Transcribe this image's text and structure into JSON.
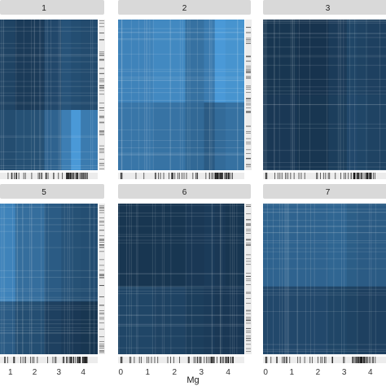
{
  "chart_data": {
    "type": "heatmap",
    "title": "",
    "xlabel": "Mg",
    "ylabel": "",
    "x_ticks": [
      0,
      1,
      2,
      3,
      4
    ],
    "xlim": [
      -0.1,
      4.6
    ],
    "grid": true,
    "legend": "none",
    "colors": {
      "low": "#132B43",
      "high": "#56B1F7",
      "strip_bg": "#D9D9D9",
      "rug": "#000000"
    },
    "panels": [
      {
        "label": "1",
        "x_bands": [
          -0.1,
          1.2,
          2.4,
          3.1,
          3.5,
          3.9,
          4.6
        ],
        "y_band_split": 0.4,
        "intensity_top": [
          0.18,
          0.12,
          0.22,
          0.3,
          0.26,
          0.24
        ],
        "intensity_bottom": [
          0.25,
          0.28,
          0.42,
          0.62,
          0.82,
          0.6
        ]
      },
      {
        "label": "2",
        "x_bands": [
          -0.1,
          1.2,
          2.4,
          3.1,
          3.5,
          3.9,
          4.6
        ],
        "y_band_split": 0.45,
        "intensity_top": [
          0.66,
          0.7,
          0.52,
          0.6,
          0.82,
          0.78
        ],
        "intensity_bottom": [
          0.56,
          0.54,
          0.46,
          0.36,
          0.48,
          0.52
        ]
      },
      {
        "label": "3",
        "x_bands": [
          -0.1,
          1.2,
          2.4,
          3.1,
          3.5,
          3.9,
          4.6
        ],
        "y_band_split": 0.5,
        "intensity_top": [
          0.08,
          0.06,
          0.12,
          0.2,
          0.18,
          0.16
        ],
        "intensity_bottom": [
          0.1,
          0.08,
          0.14,
          0.22,
          0.2,
          0.18
        ]
      },
      {
        "label": "5",
        "x_bands": [
          -0.1,
          1.2,
          2.4,
          3.1,
          3.5,
          3.9,
          4.6
        ],
        "y_band_split": 0.35,
        "intensity_top": [
          0.66,
          0.5,
          0.36,
          0.3,
          0.28,
          0.26
        ],
        "intensity_bottom": [
          0.36,
          0.26,
          0.16,
          0.12,
          0.1,
          0.08
        ]
      },
      {
        "label": "6",
        "x_bands": [
          -0.1,
          1.2,
          2.4,
          3.1,
          3.5,
          3.9,
          4.6
        ],
        "y_band_split": 0.45,
        "intensity_top": [
          0.08,
          0.08,
          0.1,
          0.12,
          0.1,
          0.08
        ],
        "intensity_bottom": [
          0.2,
          0.18,
          0.14,
          0.12,
          0.1,
          0.1
        ]
      },
      {
        "label": "7",
        "x_bands": [
          -0.1,
          1.2,
          2.4,
          3.1,
          3.5,
          3.9,
          4.6
        ],
        "y_band_split": 0.45,
        "intensity_top": [
          0.42,
          0.42,
          0.44,
          0.38,
          0.36,
          0.36
        ],
        "intensity_bottom": [
          0.22,
          0.22,
          0.2,
          0.18,
          0.16,
          0.16
        ]
      }
    ]
  }
}
